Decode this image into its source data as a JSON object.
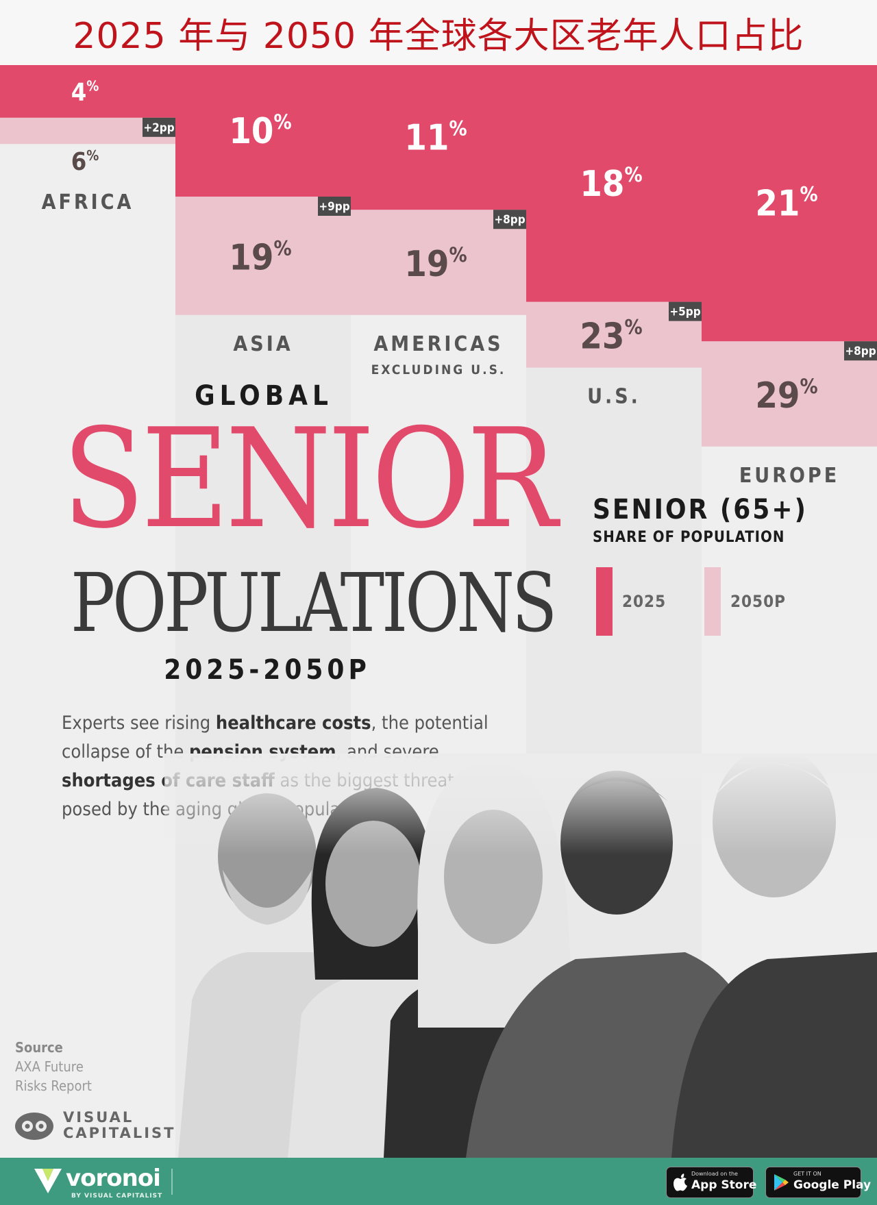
{
  "top_title": "2025 年与 2050 年全球各大区老年人口占比",
  "chart_data": {
    "type": "bar",
    "title": "GLOBAL SENIOR POPULATIONS 2025-2050P",
    "categories": [
      "AFRICA",
      "ASIA",
      "AMERICAS",
      "U.S.",
      "EUROPE"
    ],
    "category_subtitles": [
      "",
      "",
      "EXCLUDING U.S.",
      "",
      ""
    ],
    "series": [
      {
        "name": "2025",
        "values": [
          4,
          10,
          11,
          18,
          21
        ]
      },
      {
        "name": "2050P",
        "values": [
          6,
          19,
          19,
          23,
          29
        ]
      }
    ],
    "change_labels": [
      "+2pp",
      "+9pp",
      "+8pp",
      "+5pp",
      "+8pp"
    ],
    "value_suffix": "%",
    "ylim": [
      0,
      100
    ],
    "colors": {
      "2025": "#e24a6b",
      "2050P": "#ecc4cd"
    },
    "legend_position": "right"
  },
  "headline": {
    "kicker": "GLOBAL",
    "main": "SENIOR",
    "secondary": "POPULATIONS",
    "years": "2025-2050P"
  },
  "legend": {
    "title": "SENIOR (65+)",
    "subtitle": "SHARE OF POPULATION",
    "items": [
      {
        "label": "2025",
        "color": "#e24a6b"
      },
      {
        "label": "2050P",
        "color": "#ecc4cd"
      }
    ]
  },
  "blurb": {
    "parts": [
      {
        "text": "Experts see rising ",
        "bold": false
      },
      {
        "text": "healthcare costs",
        "bold": true
      },
      {
        "text": ", the potential collapse of the ",
        "bold": false
      },
      {
        "text": "pension system",
        "bold": true
      },
      {
        "text": ", and severe ",
        "bold": false
      },
      {
        "text": "shortages of care staff",
        "bold": true
      },
      {
        "text": " as the biggest threats posed by the aging global population.",
        "bold": false
      }
    ]
  },
  "source": {
    "label": "Source",
    "line1": "AXA Future",
    "line2": "Risks Report"
  },
  "brand": {
    "line1": "VISUAL",
    "line2": "CAPITALIST"
  },
  "footer": {
    "voronoi": "voronoi",
    "voronoi_sub": "BY VISUAL CAPITALIST",
    "app_store_small": "Download on the",
    "app_store": "App Store",
    "google_play_small": "GET IT ON",
    "google_play": "Google Play"
  }
}
